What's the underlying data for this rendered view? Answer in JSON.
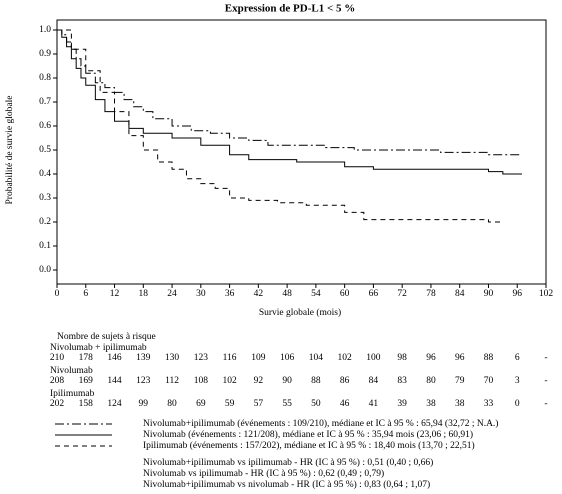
{
  "chart_data": {
    "type": "step",
    "title": "Expression de PD-L1 < 5 %",
    "y_label": "Probabilité de survie globale",
    "x_label": "Survie globale (mois)",
    "xlim": [
      0,
      102
    ],
    "xticks": [
      0,
      6,
      12,
      18,
      24,
      30,
      36,
      42,
      48,
      54,
      60,
      66,
      72,
      78,
      84,
      90,
      96,
      102
    ],
    "ylim": [
      0,
      1.05
    ],
    "yticks": [
      {
        "value": 0,
        "label": "0.0"
      },
      0.1,
      0.2,
      0.3,
      0.4,
      0.5,
      0.6,
      0.7,
      0.8,
      0.9,
      {
        "value": 1,
        "label": "1.0"
      }
    ],
    "series": [
      {
        "name": "Nivolumab+ipilimumab (événements : 109/210), médiane et IC à 95 % : 65,94 (32,72 ; N.A.)",
        "color": "#000000",
        "dash": "9 3 2 3",
        "x": [
          0,
          1,
          2,
          3,
          4,
          5,
          6,
          8,
          10,
          12,
          14,
          16,
          18,
          20,
          24,
          28,
          32,
          36,
          40,
          44,
          50,
          56,
          62,
          70,
          80,
          90,
          97
        ],
        "values": [
          1,
          0.98,
          0.95,
          0.92,
          0.88,
          0.85,
          0.82,
          0.78,
          0.76,
          0.74,
          0.71,
          0.68,
          0.66,
          0.63,
          0.6,
          0.58,
          0.57,
          0.55,
          0.54,
          0.52,
          0.52,
          0.51,
          0.5,
          0.5,
          0.49,
          0.48,
          0.48
        ]
      },
      {
        "name": "Nivolumab (événements : 121/208), médiane et IC à 95 % : 35,94 mois (23,06 ; 60,91)",
        "color": "#000000",
        "dash": "none",
        "x": [
          0,
          1,
          2,
          3,
          4,
          5,
          6,
          8,
          10,
          12,
          15,
          18,
          24,
          30,
          36,
          40,
          50,
          60,
          66,
          80,
          90,
          93,
          97
        ],
        "values": [
          1,
          0.97,
          0.93,
          0.88,
          0.84,
          0.8,
          0.77,
          0.71,
          0.66,
          0.62,
          0.59,
          0.57,
          0.55,
          0.52,
          0.48,
          0.46,
          0.45,
          0.43,
          0.42,
          0.42,
          0.41,
          0.4,
          0.4
        ]
      },
      {
        "name": "Ipilimumab (événements : 157/202), médiane et IC à 95 % : 18,40 mois (13,70 ; 22,51)",
        "color": "#000000",
        "dash": "5 4",
        "x": [
          0,
          3,
          6,
          9,
          12,
          15,
          18,
          21,
          24,
          27,
          30,
          33,
          36,
          40,
          46,
          52,
          60,
          64,
          70,
          86,
          90,
          93
        ],
        "values": [
          1,
          0.92,
          0.83,
          0.74,
          0.66,
          0.56,
          0.5,
          0.45,
          0.42,
          0.38,
          0.36,
          0.34,
          0.3,
          0.29,
          0.28,
          0.27,
          0.24,
          0.21,
          0.21,
          0.21,
          0.2,
          0.2
        ]
      }
    ],
    "risk_table": {
      "title": "Nombre de sujets à risque",
      "groups": [
        {
          "label": "Nivolumab + ipilimumab",
          "counts": [
            210,
            178,
            146,
            139,
            130,
            123,
            116,
            109,
            106,
            104,
            102,
            100,
            98,
            96,
            96,
            88,
            6,
            "-"
          ]
        },
        {
          "label": "Nivolumab",
          "counts": [
            208,
            169,
            144,
            123,
            112,
            108,
            102,
            92,
            90,
            88,
            86,
            84,
            83,
            80,
            79,
            70,
            3,
            "-"
          ]
        },
        {
          "label": "Ipilimumab",
          "counts": [
            202,
            158,
            124,
            99,
            80,
            69,
            59,
            57,
            55,
            50,
            46,
            41,
            39,
            38,
            38,
            33,
            0,
            "-"
          ]
        }
      ]
    },
    "hazard_ratios": [
      "Nivolumab+ipilimumab vs ipilimumab - HR (IC à 95 %) : 0,51 (0,40 ; 0,66)",
      "Nivolumab vs ipilimumab - HR (IC à 95 %) : 0,62 (0,49 ; 0,79)",
      "Nivolumab+ipilimumab vs nivolumab - HR (IC à 95 %) : 0,83 (0,64 ; 1,07)"
    ]
  }
}
